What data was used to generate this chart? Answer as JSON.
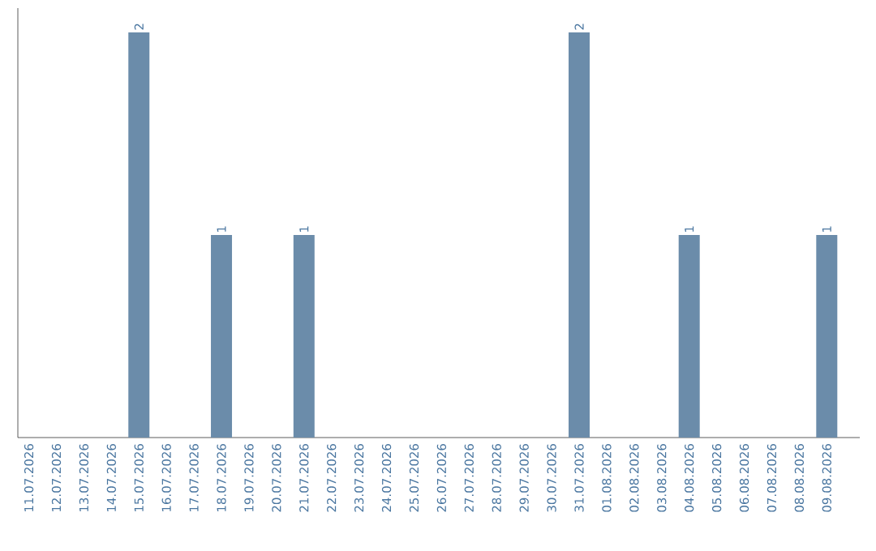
{
  "chart_data": {
    "type": "bar",
    "categories": [
      "11.07.2026",
      "12.07.2026",
      "13.07.2026",
      "14.07.2026",
      "15.07.2026",
      "16.07.2026",
      "17.07.2026",
      "18.07.2026",
      "19.07.2026",
      "20.07.2026",
      "21.07.2026",
      "22.07.2026",
      "23.07.2026",
      "24.07.2026",
      "25.07.2026",
      "26.07.2026",
      "27.07.2026",
      "28.07.2026",
      "29.07.2026",
      "30.07.2026",
      "31.07.2026",
      "01.08.2026",
      "02.08.2026",
      "03.08.2026",
      "04.08.2026",
      "05.08.2026",
      "06.08.2026",
      "07.08.2026",
      "08.08.2026",
      "09.08.2026"
    ],
    "values": [
      0,
      0,
      0,
      0,
      2,
      0,
      0,
      1,
      0,
      0,
      1,
      0,
      0,
      0,
      0,
      0,
      0,
      0,
      0,
      0,
      2,
      0,
      0,
      0,
      1,
      0,
      0,
      0,
      0,
      1
    ],
    "value_labels": [
      null,
      null,
      null,
      null,
      "2",
      null,
      null,
      "1",
      null,
      null,
      "1",
      null,
      null,
      null,
      null,
      null,
      null,
      null,
      null,
      null,
      "2",
      null,
      null,
      null,
      "1",
      null,
      null,
      null,
      null,
      "1"
    ],
    "color": "#6b8caa",
    "tick_labels": "x",
    "grid": false
  }
}
